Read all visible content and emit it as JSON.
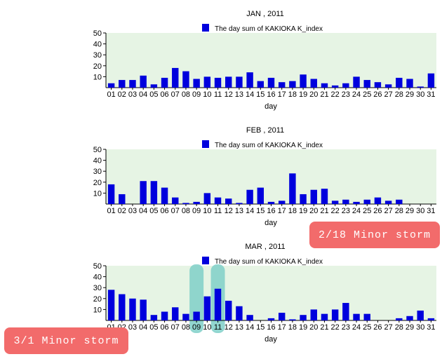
{
  "colors": {
    "bar": "#0000dd",
    "plot_bg": "#e6f4e4",
    "axis": "#000000",
    "highlight": "#7fcfc8",
    "badge": "#f26b6b"
  },
  "annotations": {
    "feb_note": "2/18 Minor storm",
    "mar_note": "3/1 Minor storm"
  },
  "chart_data": [
    {
      "type": "bar",
      "title": "JAN , 2011",
      "legend": "The day sum of KAKIOKA K_index",
      "legend_position": "top-center",
      "xlabel": "day",
      "ylabel": "",
      "ylim": [
        0,
        50
      ],
      "yticks": [
        10,
        20,
        30,
        40,
        50
      ],
      "categories": [
        "01",
        "02",
        "03",
        "04",
        "05",
        "06",
        "07",
        "08",
        "09",
        "10",
        "11",
        "12",
        "13",
        "14",
        "15",
        "16",
        "17",
        "18",
        "19",
        "20",
        "21",
        "22",
        "23",
        "24",
        "25",
        "26",
        "27",
        "28",
        "29",
        "30",
        "31"
      ],
      "values": [
        4,
        7,
        7,
        11,
        3,
        9,
        18,
        15,
        8,
        10,
        9,
        10,
        10,
        14,
        6,
        9,
        5,
        6,
        12,
        8,
        4,
        2,
        4,
        10,
        7,
        5,
        3,
        9,
        8,
        1,
        13
      ]
    },
    {
      "type": "bar",
      "title": "FEB , 2011",
      "legend": "The day sum of KAKIOKA K_index",
      "legend_position": "top-center",
      "xlabel": "day",
      "ylabel": "",
      "ylim": [
        0,
        50
      ],
      "yticks": [
        10,
        20,
        30,
        40,
        50
      ],
      "categories": [
        "01",
        "02",
        "03",
        "04",
        "05",
        "06",
        "07",
        "08",
        "09",
        "10",
        "11",
        "12",
        "13",
        "14",
        "15",
        "16",
        "17",
        "18",
        "19",
        "20",
        "21",
        "22",
        "23",
        "24",
        "25",
        "26",
        "27",
        "28",
        "29",
        "30",
        "31"
      ],
      "values": [
        18,
        9,
        0,
        21,
        21,
        15,
        6,
        1,
        2,
        10,
        6,
        5,
        1,
        13,
        15,
        2,
        3,
        28,
        9,
        13,
        14,
        3,
        4,
        2,
        4,
        6,
        3,
        4,
        0,
        0,
        0
      ]
    },
    {
      "type": "bar",
      "title": "MAR , 2011",
      "legend": "The day sum of KAKIOKA K_index",
      "legend_position": "top-center",
      "xlabel": "day",
      "ylabel": "",
      "ylim": [
        0,
        50
      ],
      "yticks": [
        10,
        20,
        30,
        40,
        50
      ],
      "categories": [
        "01",
        "02",
        "03",
        "04",
        "05",
        "06",
        "07",
        "08",
        "09",
        "10",
        "11",
        "12",
        "13",
        "14",
        "15",
        "16",
        "17",
        "18",
        "19",
        "20",
        "21",
        "22",
        "23",
        "24",
        "25",
        "26",
        "27",
        "28",
        "29",
        "30",
        "31"
      ],
      "values": [
        28,
        24,
        20,
        19,
        5,
        8,
        12,
        6,
        8,
        22,
        29,
        18,
        13,
        5,
        0,
        2,
        7,
        1,
        5,
        10,
        6,
        10,
        16,
        6,
        6,
        0,
        0,
        2,
        4,
        9,
        2
      ],
      "highlighted_days": [
        "09",
        "11"
      ]
    }
  ]
}
